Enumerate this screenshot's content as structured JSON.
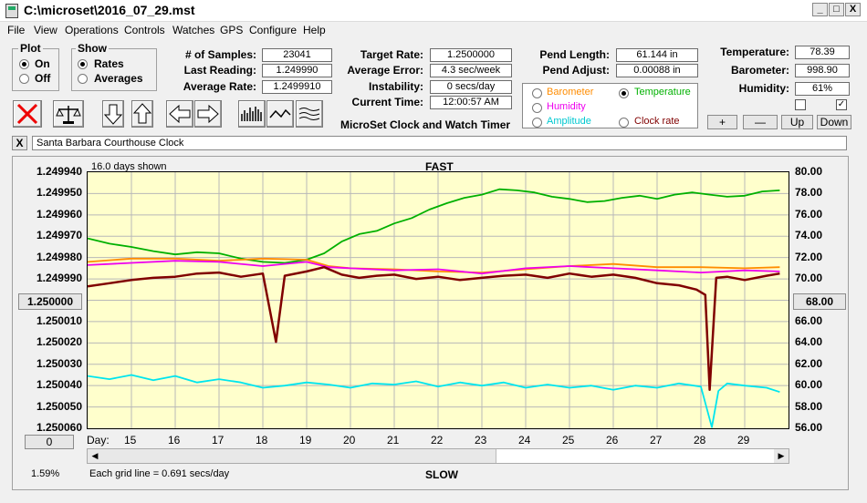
{
  "window": {
    "title": "C:\\microset\\2016_07_29.mst",
    "min_btn": "_",
    "max_btn": "□",
    "close_btn": "X"
  },
  "menu": [
    "File",
    "View",
    "Operations",
    "Controls",
    "Watches",
    "GPS",
    "Configure",
    "Help"
  ],
  "plot_group": {
    "title": "Plot",
    "on": "On",
    "off": "Off",
    "selected": "On"
  },
  "show_group": {
    "title": "Show",
    "rates": "Rates",
    "averages": "Averages",
    "selected": "Rates"
  },
  "stats": {
    "samples_label": "# of Samples:",
    "samples": "23041",
    "last_reading_label": "Last Reading:",
    "last_reading": "1.249990",
    "average_rate_label": "Average Rate:",
    "average_rate": "1.2499910",
    "target_rate_label": "Target Rate:",
    "target_rate": "1.2500000",
    "average_error_label": "Average Error:",
    "average_error": "4.3 sec/week",
    "instability_label": "Instability:",
    "instability": "0 secs/day",
    "current_time_label": "Current Time:",
    "current_time": "12:00:57 AM",
    "app_caption": "MicroSet Clock and Watch Timer",
    "pend_length_label": "Pend Length:",
    "pend_length": "61.144 in",
    "pend_adjust_label": "Pend Adjust:",
    "pend_adjust": "0.00088 in",
    "temperature_label": "Temperature:",
    "temperature": "78.39",
    "barometer_label": "Barometer:",
    "barometer": "998.90",
    "humidity_label": "Humidity:",
    "humidity": "61%"
  },
  "secondary": {
    "barometer": "Barometer",
    "temperature": "Temperature",
    "humidity": "Humidity",
    "amplitude": "Amplitude",
    "clock_rate": "Clock rate",
    "selected": "Temperature"
  },
  "scale_buttons": {
    "plus": "+",
    "minus": "—",
    "up": "Up",
    "down": "Down"
  },
  "clock_name": "Santa Barbara Courthouse Clock",
  "clear_btn": "X",
  "colors": {
    "temperature": "#00b000",
    "barometer": "#ff8c00",
    "humidity": "#ee00ee",
    "amplitude": "#00e5ee",
    "rate": "#800000",
    "plot_bg": "#ffffcc"
  },
  "chart_data": {
    "type": "line",
    "top_label": "FAST",
    "bottom_label": "SLOW",
    "days_shown": "16.0 days shown",
    "grid_note": "Each grid line = 0.691 secs/day",
    "percent": "1.59%",
    "left_button": "0",
    "x_label": "Day:",
    "xticks": [
      "15",
      "16",
      "17",
      "18",
      "19",
      "20",
      "21",
      "22",
      "23",
      "24",
      "25",
      "26",
      "27",
      "28",
      "29"
    ],
    "xlim": [
      14.0,
      30.0
    ],
    "left_ticks": [
      "1.249940",
      "1.249950",
      "1.249960",
      "1.249970",
      "1.249980",
      "1.249990",
      "1.250000",
      "1.250010",
      "1.250020",
      "1.250030",
      "1.250040",
      "1.250050",
      "1.250060"
    ],
    "left_center_button": "1.250000",
    "left_range": [
      1.24994,
      1.25006
    ],
    "right_ticks": [
      "80.00",
      "78.00",
      "76.00",
      "74.00",
      "72.00",
      "70.00",
      "68.00",
      "66.00",
      "64.00",
      "62.00",
      "60.00",
      "58.00",
      "56.00"
    ],
    "right_center_button": "68.00",
    "right_range": [
      56.0,
      80.0
    ],
    "series": [
      {
        "name": "Temperature",
        "axis": "right",
        "color": "#00b000",
        "points": [
          [
            14.0,
            73.8
          ],
          [
            14.5,
            73.3
          ],
          [
            15.0,
            73.0
          ],
          [
            15.5,
            72.6
          ],
          [
            16.0,
            72.3
          ],
          [
            16.5,
            72.5
          ],
          [
            17.0,
            72.4
          ],
          [
            17.5,
            71.9
          ],
          [
            18.0,
            71.6
          ],
          [
            18.5,
            71.5
          ],
          [
            19.0,
            71.8
          ],
          [
            19.4,
            72.4
          ],
          [
            19.8,
            73.5
          ],
          [
            20.2,
            74.2
          ],
          [
            20.6,
            74.5
          ],
          [
            21.0,
            75.2
          ],
          [
            21.4,
            75.7
          ],
          [
            21.8,
            76.5
          ],
          [
            22.2,
            77.1
          ],
          [
            22.6,
            77.6
          ],
          [
            23.0,
            77.9
          ],
          [
            23.4,
            78.4
          ],
          [
            23.8,
            78.3
          ],
          [
            24.2,
            78.1
          ],
          [
            24.6,
            77.7
          ],
          [
            25.0,
            77.5
          ],
          [
            25.4,
            77.2
          ],
          [
            25.8,
            77.3
          ],
          [
            26.2,
            77.6
          ],
          [
            26.6,
            77.8
          ],
          [
            27.0,
            77.5
          ],
          [
            27.4,
            77.9
          ],
          [
            27.8,
            78.1
          ],
          [
            28.2,
            77.9
          ],
          [
            28.6,
            77.7
          ],
          [
            29.0,
            77.8
          ],
          [
            29.4,
            78.2
          ],
          [
            29.8,
            78.3
          ]
        ]
      },
      {
        "name": "Barometer",
        "axis": "right",
        "color": "#ff8c00",
        "points": [
          [
            14.0,
            71.6
          ],
          [
            15.0,
            71.9
          ],
          [
            16.0,
            71.9
          ],
          [
            17.0,
            71.7
          ],
          [
            18.0,
            71.9
          ],
          [
            19.0,
            71.8
          ],
          [
            19.5,
            71.2
          ],
          [
            20.0,
            71.0
          ],
          [
            21.0,
            70.9
          ],
          [
            22.0,
            70.7
          ],
          [
            23.0,
            70.6
          ],
          [
            24.0,
            70.9
          ],
          [
            25.0,
            71.2
          ],
          [
            26.0,
            71.4
          ],
          [
            27.0,
            71.1
          ],
          [
            28.0,
            71.1
          ],
          [
            29.0,
            71.0
          ],
          [
            29.8,
            71.1
          ]
        ]
      },
      {
        "name": "Humidity",
        "axis": "right",
        "color": "#ee00ee",
        "points": [
          [
            14.0,
            71.3
          ],
          [
            15.0,
            71.5
          ],
          [
            16.0,
            71.7
          ],
          [
            17.0,
            71.6
          ],
          [
            18.0,
            71.2
          ],
          [
            19.0,
            71.6
          ],
          [
            19.5,
            71.1
          ],
          [
            20.0,
            71.0
          ],
          [
            21.0,
            70.8
          ],
          [
            22.0,
            70.9
          ],
          [
            23.0,
            70.5
          ],
          [
            24.0,
            71.0
          ],
          [
            25.0,
            71.2
          ],
          [
            26.0,
            71.0
          ],
          [
            27.0,
            70.8
          ],
          [
            28.0,
            70.6
          ],
          [
            29.0,
            70.8
          ],
          [
            29.8,
            70.7
          ]
        ]
      },
      {
        "name": "Amplitude",
        "axis": "right",
        "color": "#00e5ee",
        "points": [
          [
            14.0,
            60.9
          ],
          [
            14.5,
            60.6
          ],
          [
            15.0,
            61.0
          ],
          [
            15.5,
            60.5
          ],
          [
            16.0,
            60.9
          ],
          [
            16.5,
            60.3
          ],
          [
            17.0,
            60.6
          ],
          [
            17.5,
            60.3
          ],
          [
            18.0,
            59.8
          ],
          [
            18.5,
            60.0
          ],
          [
            19.0,
            60.3
          ],
          [
            19.5,
            60.1
          ],
          [
            20.0,
            59.8
          ],
          [
            20.5,
            60.2
          ],
          [
            21.0,
            60.1
          ],
          [
            21.5,
            60.4
          ],
          [
            22.0,
            59.9
          ],
          [
            22.5,
            60.3
          ],
          [
            23.0,
            60.0
          ],
          [
            23.5,
            60.3
          ],
          [
            24.0,
            59.8
          ],
          [
            24.5,
            60.1
          ],
          [
            25.0,
            59.8
          ],
          [
            25.5,
            60.0
          ],
          [
            26.0,
            59.6
          ],
          [
            26.5,
            60.0
          ],
          [
            27.0,
            59.8
          ],
          [
            27.5,
            60.2
          ],
          [
            28.0,
            59.9
          ],
          [
            28.25,
            56.1
          ],
          [
            28.4,
            59.5
          ],
          [
            28.6,
            60.2
          ],
          [
            29.0,
            60.0
          ],
          [
            29.5,
            59.8
          ],
          [
            29.8,
            59.4
          ]
        ]
      },
      {
        "name": "Rate",
        "axis": "right",
        "color": "#800000",
        "points": [
          [
            14.0,
            69.3
          ],
          [
            14.5,
            69.6
          ],
          [
            15.0,
            69.9
          ],
          [
            15.5,
            70.1
          ],
          [
            16.0,
            70.2
          ],
          [
            16.5,
            70.5
          ],
          [
            17.0,
            70.6
          ],
          [
            17.5,
            70.2
          ],
          [
            18.0,
            70.5
          ],
          [
            18.3,
            64.1
          ],
          [
            18.5,
            70.3
          ],
          [
            19.0,
            70.7
          ],
          [
            19.4,
            71.1
          ],
          [
            19.8,
            70.4
          ],
          [
            20.2,
            70.1
          ],
          [
            20.6,
            70.3
          ],
          [
            21.0,
            70.4
          ],
          [
            21.5,
            70.0
          ],
          [
            22.0,
            70.2
          ],
          [
            22.5,
            69.9
          ],
          [
            23.0,
            70.1
          ],
          [
            23.5,
            70.3
          ],
          [
            24.0,
            70.4
          ],
          [
            24.5,
            70.1
          ],
          [
            25.0,
            70.5
          ],
          [
            25.5,
            70.2
          ],
          [
            26.0,
            70.4
          ],
          [
            26.5,
            70.1
          ],
          [
            27.0,
            69.6
          ],
          [
            27.5,
            69.4
          ],
          [
            27.9,
            69.0
          ],
          [
            28.1,
            68.5
          ],
          [
            28.2,
            59.6
          ],
          [
            28.35,
            70.1
          ],
          [
            28.6,
            70.2
          ],
          [
            29.0,
            69.9
          ],
          [
            29.5,
            70.3
          ],
          [
            29.8,
            70.5
          ]
        ]
      }
    ]
  }
}
